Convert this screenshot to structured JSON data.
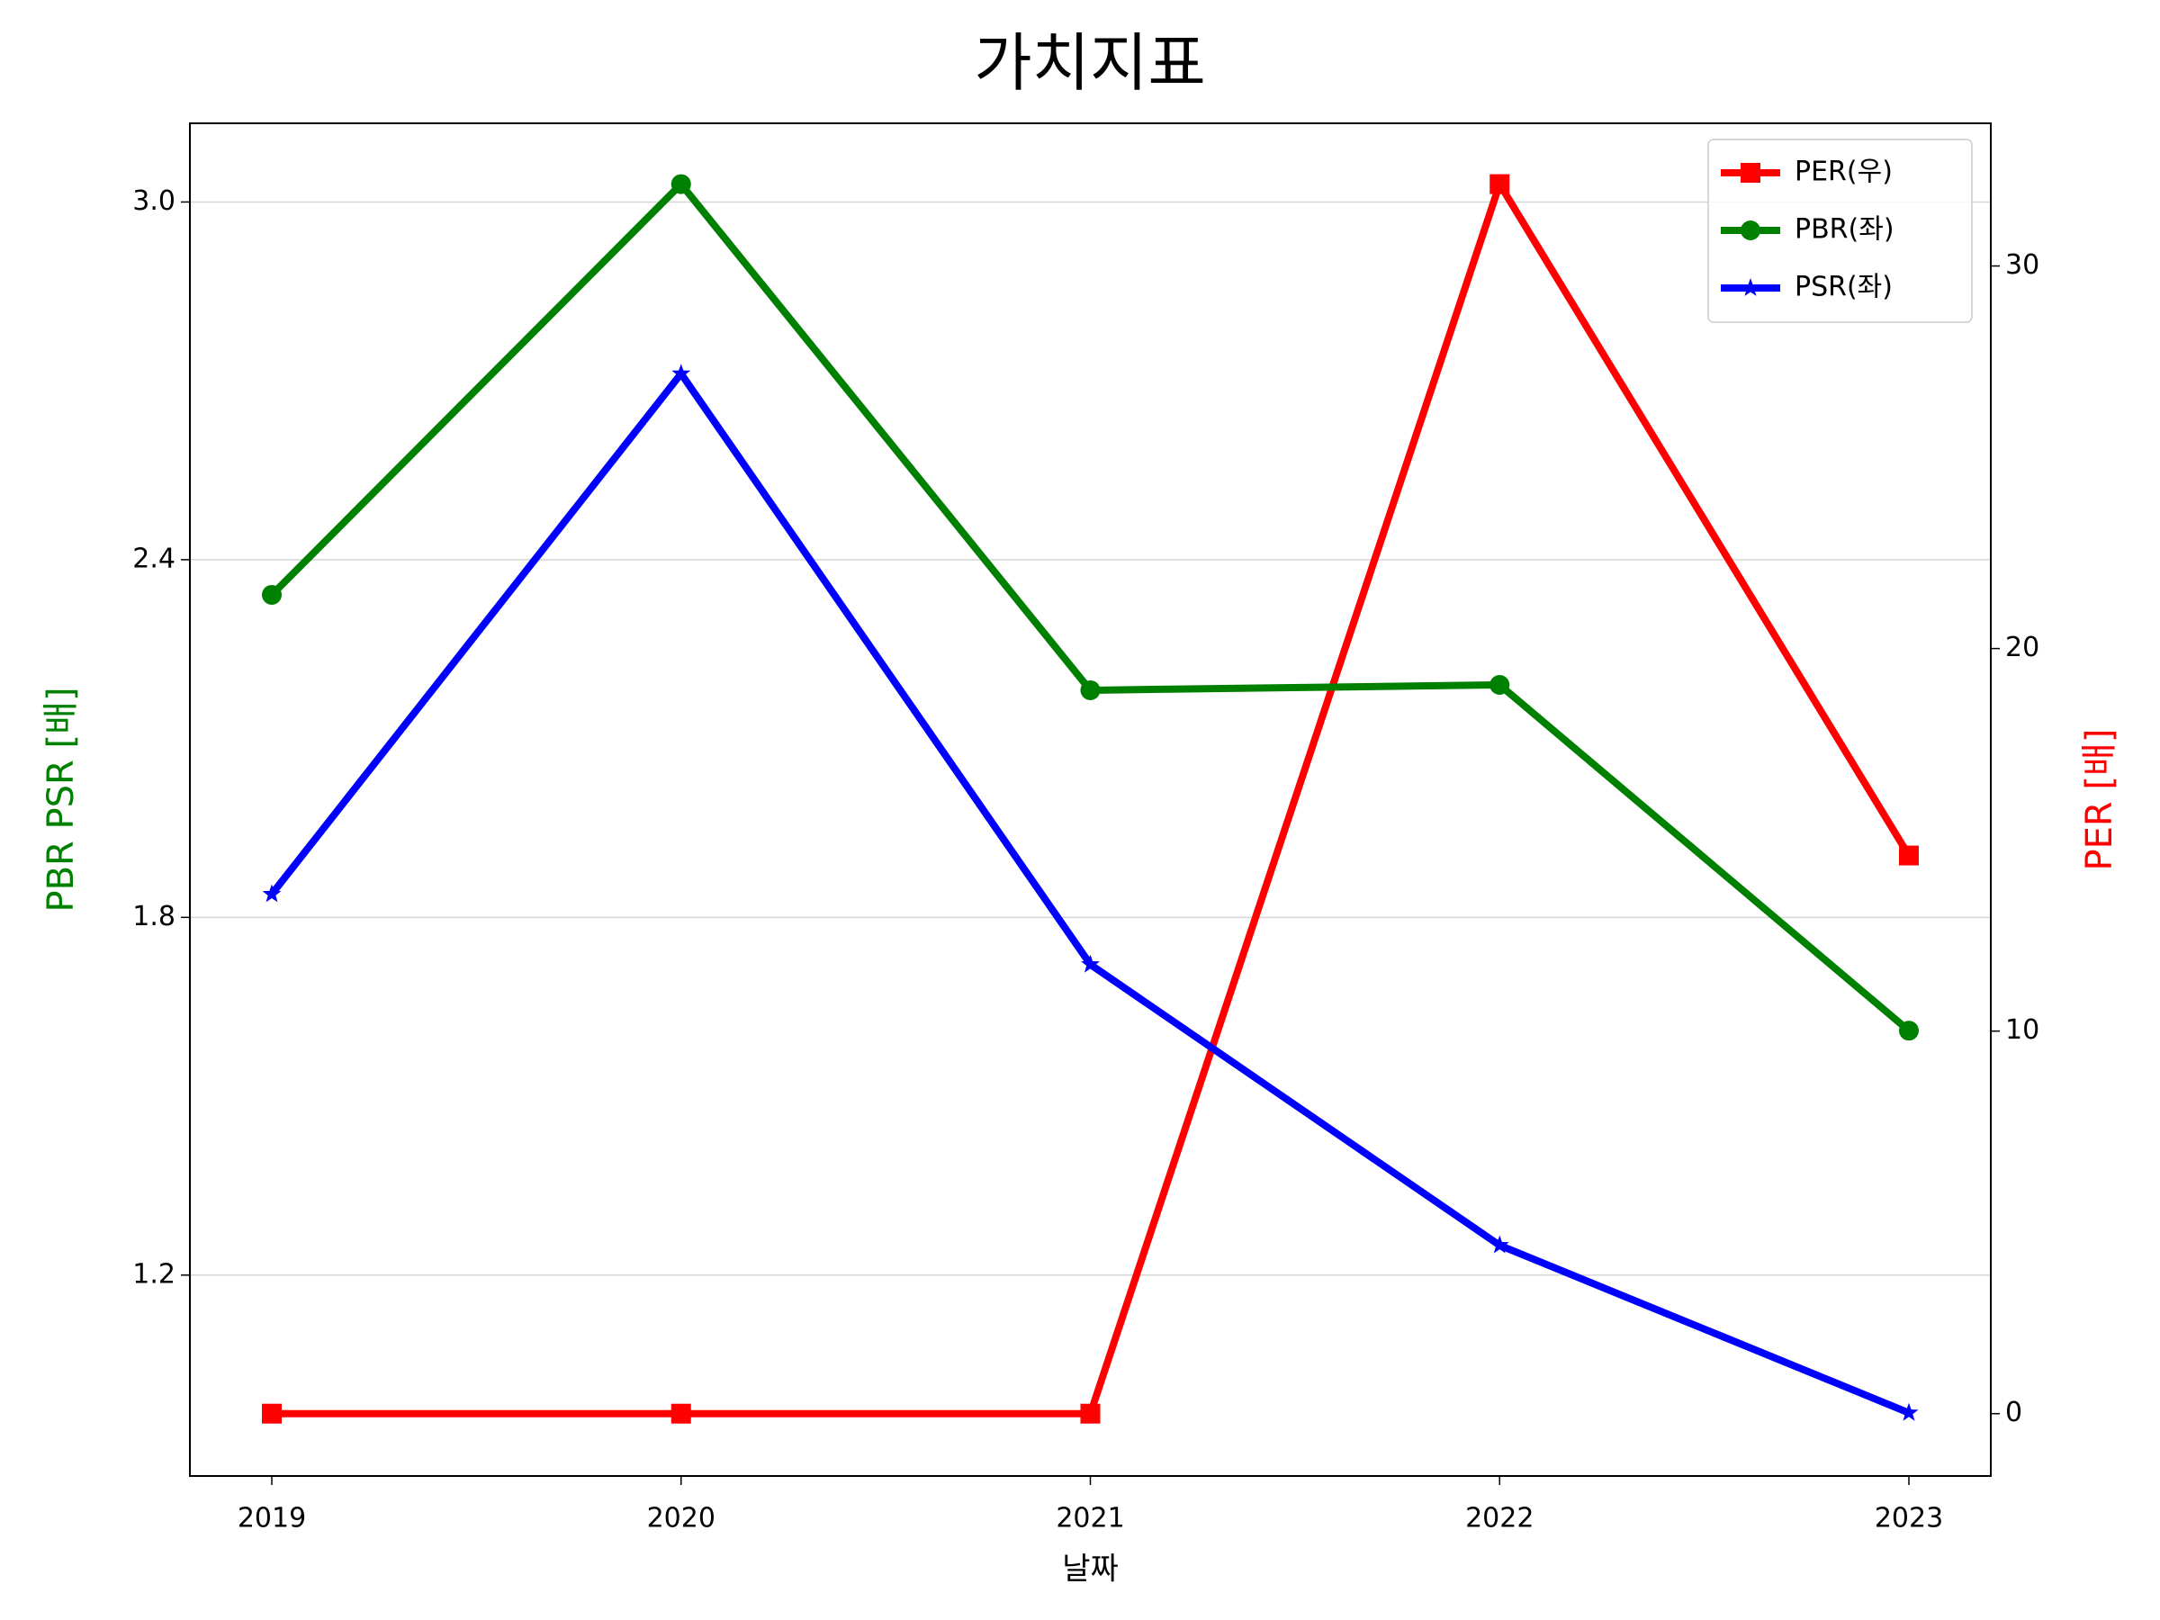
{
  "chart_data": {
    "type": "line",
    "title": "가치지표",
    "x_label": "날짜",
    "y_label": "PBR PSR [배]",
    "y2_label": "PER [배]",
    "y_label_color": "green",
    "y2_label_color": "red",
    "categories": [
      "2019",
      "2020",
      "2021",
      "2022",
      "2023"
    ],
    "series": [
      {
        "name": "PER(우)",
        "color": "red",
        "marker": "square",
        "axis": "y2",
        "values": [
          0,
          0,
          0,
          32.14,
          14.59
        ]
      },
      {
        "name": "PBR(좌)",
        "color": "green",
        "marker": "circle",
        "values": [
          2.341,
          3.03,
          2.181,
          2.19,
          1.61
        ]
      },
      {
        "name": "PSR(좌)",
        "color": "blue",
        "marker": "star",
        "values": [
          1.839,
          2.712,
          1.721,
          1.25,
          0.969
        ]
      }
    ],
    "ylim": [
      0.863,
      3.132
    ],
    "yticks": [
      1.2,
      1.8,
      2.4,
      {
        "value": 3.0,
        "label": "3.0"
      }
    ],
    "y2lim": [
      -1.63,
      33.73
    ],
    "y2ticks": [
      0,
      10,
      20,
      30
    ],
    "grid": true,
    "legend": "upper right"
  }
}
